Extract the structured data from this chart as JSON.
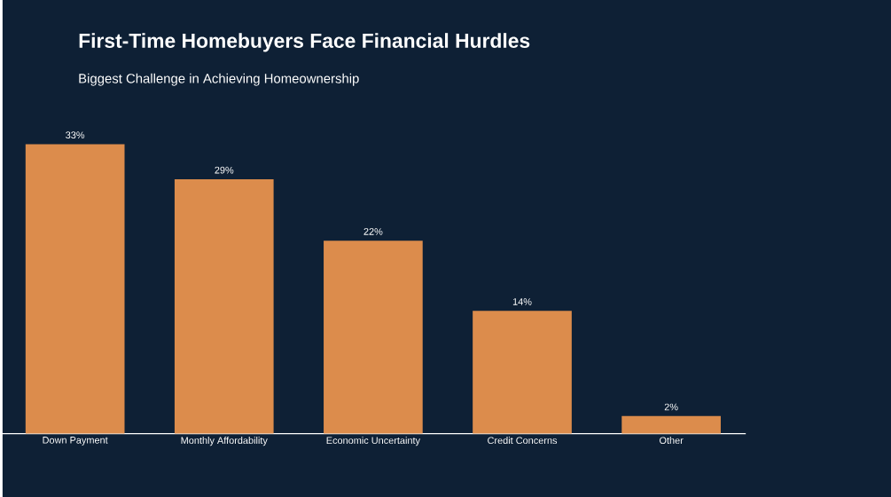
{
  "chart_data": {
    "type": "bar",
    "title": "First-Time Homebuyers Face Financial Hurdles",
    "subtitle": "Biggest Challenge in Achieving Homeownership",
    "categories": [
      "Down Payment",
      "Monthly Affordability",
      "Economic Uncertainty",
      "Credit Concerns",
      "Other"
    ],
    "values": [
      33,
      29,
      22,
      14,
      2
    ],
    "value_labels": [
      "33%",
      "29%",
      "22%",
      "14%",
      "2%"
    ],
    "color": "#dc8c4c"
  }
}
